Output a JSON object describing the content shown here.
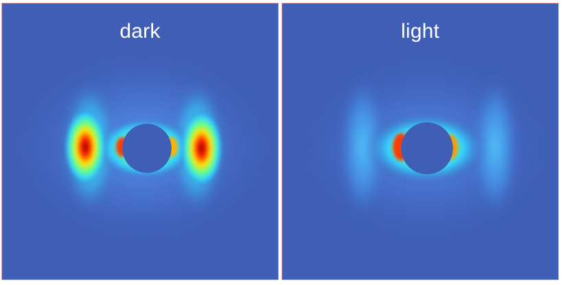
{
  "panels": [
    {
      "label": "dark"
    },
    {
      "label": "light"
    }
  ],
  "colors": {
    "background_blue": "#3f5fb6",
    "frame_border": "#e7a6b6",
    "peak_red": "#a10000",
    "yellow": "#ffe100",
    "cyan": "#33d0ff"
  }
}
